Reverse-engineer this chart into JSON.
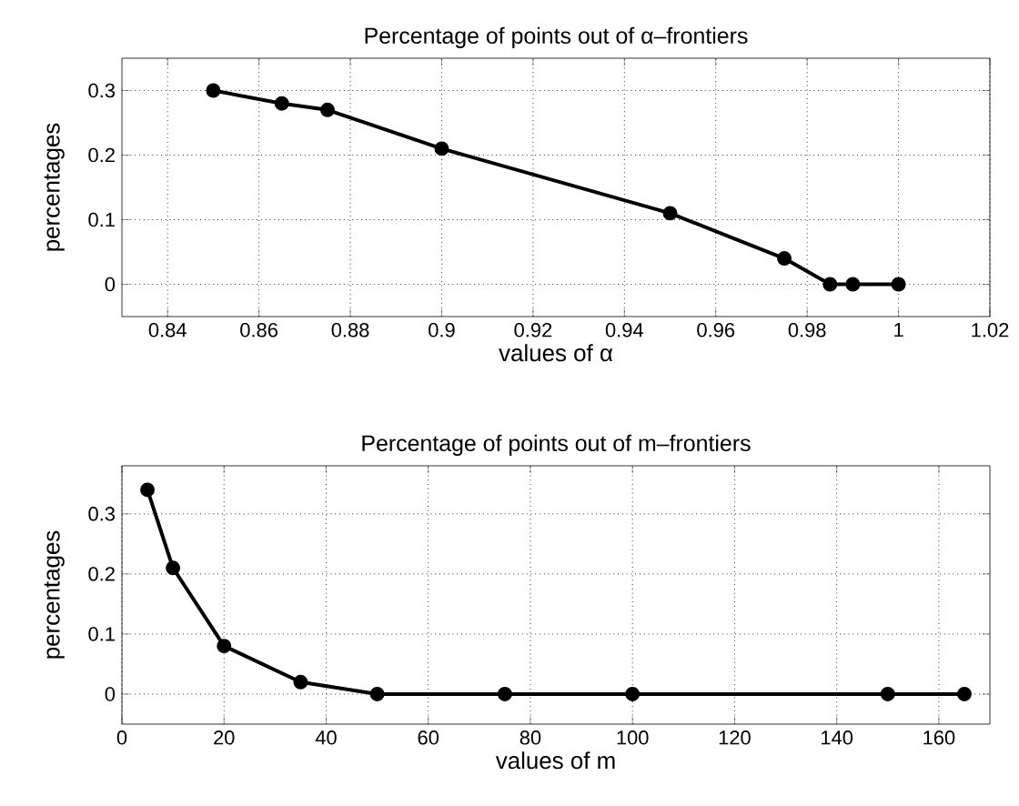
{
  "chart_data": [
    {
      "type": "line",
      "title": "Percentage of points out of α–frontiers",
      "xlabel": "values of α",
      "ylabel": "percentages",
      "x": [
        0.85,
        0.865,
        0.875,
        0.9,
        0.95,
        0.975,
        0.985,
        0.99,
        1.0
      ],
      "series": [
        {
          "color": "#000000",
          "values": [
            0.3,
            0.28,
            0.27,
            0.21,
            0.11,
            0.04,
            0,
            0,
            0
          ]
        }
      ],
      "xlim": [
        0.83,
        1.02
      ],
      "ylim": [
        -0.05,
        0.35
      ],
      "xticks": [
        0.84,
        0.86,
        0.88,
        0.9,
        0.92,
        0.94,
        0.96,
        0.98,
        1,
        1.02
      ],
      "yticks": [
        0,
        0.1,
        0.2,
        0.3
      ],
      "grid": true,
      "marker": "circle",
      "line_style": "solid"
    },
    {
      "type": "line",
      "title": "Percentage of points out of m–frontiers",
      "xlabel": "values of m",
      "ylabel": "percentages",
      "x": [
        5,
        10,
        20,
        35,
        50,
        75,
        100,
        150,
        165
      ],
      "series": [
        {
          "color": "#000000",
          "values": [
            0.34,
            0.21,
            0.08,
            0.02,
            0,
            0,
            0,
            0,
            0
          ]
        }
      ],
      "xlim": [
        0,
        170
      ],
      "ylim": [
        -0.05,
        0.38
      ],
      "xticks": [
        0,
        20,
        40,
        60,
        80,
        100,
        120,
        140,
        160
      ],
      "yticks": [
        0,
        0.1,
        0.2,
        0.3
      ],
      "grid": true,
      "marker": "circle",
      "line_style": "solid"
    }
  ]
}
